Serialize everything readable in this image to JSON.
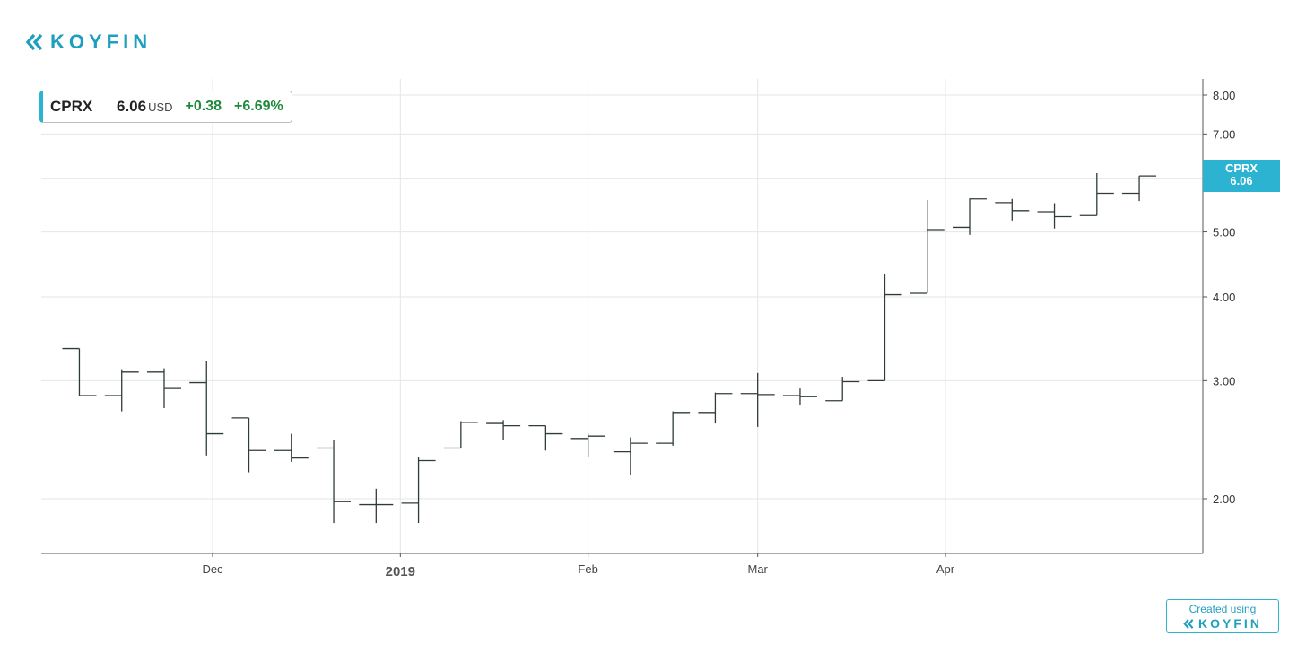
{
  "brand": {
    "name": "KOYFIN",
    "logo_icon": "koyfin-chevron-icon",
    "color": "#1f9fbf"
  },
  "quote": {
    "ticker": "CPRX",
    "price": "6.06",
    "currency": "USD",
    "change": "+0.38",
    "change_pct": "+6.69%",
    "change_color": "#1e8a3c",
    "accent_color": "#2bb3d1"
  },
  "last_price_tag": {
    "ticker": "CPRX",
    "price": "6.06",
    "color": "#2bb3d1"
  },
  "footer": {
    "created_using": "Created using",
    "brand": "KOYFIN"
  },
  "chart_data": {
    "type": "ohlc",
    "title": "",
    "xlabel": "",
    "ylabel": "",
    "y_scale": "log",
    "ylim": [
      1.7,
      8.6
    ],
    "yticks": [
      2,
      3,
      4,
      5,
      6,
      7,
      8
    ],
    "ytick_labels": [
      "2.00",
      "3.00",
      "4.00",
      "5.00",
      "6.00",
      "7.00",
      "8.00"
    ],
    "grid": true,
    "x_start": "2018-11-08",
    "xticks": [
      {
        "date": "2018-12-01",
        "label": "Dec",
        "bold": false
      },
      {
        "date": "2019-01-01",
        "label": "2019",
        "bold": true
      },
      {
        "date": "2019-02-01",
        "label": "Feb",
        "bold": false
      },
      {
        "date": "2019-03-01",
        "label": "Mar",
        "bold": false
      },
      {
        "date": "2019-04-01",
        "label": "Apr",
        "bold": false
      }
    ],
    "bars": [
      {
        "date": "2018-11-09",
        "o": 3.35,
        "h": 3.35,
        "l": 2.85,
        "c": 2.85
      },
      {
        "date": "2018-11-16",
        "o": 2.85,
        "h": 3.12,
        "l": 2.7,
        "c": 3.09
      },
      {
        "date": "2018-11-23",
        "o": 3.09,
        "h": 3.13,
        "l": 2.73,
        "c": 2.92
      },
      {
        "date": "2018-11-30",
        "o": 2.98,
        "h": 3.21,
        "l": 2.32,
        "c": 2.5
      },
      {
        "date": "2018-12-07",
        "o": 2.64,
        "h": 2.64,
        "l": 2.19,
        "c": 2.36
      },
      {
        "date": "2018-12-14",
        "o": 2.36,
        "h": 2.5,
        "l": 2.27,
        "c": 2.3
      },
      {
        "date": "2018-12-21",
        "o": 2.38,
        "h": 2.45,
        "l": 1.84,
        "c": 1.98
      },
      {
        "date": "2018-12-28",
        "o": 1.96,
        "h": 2.07,
        "l": 1.84,
        "c": 1.96
      },
      {
        "date": "2019-01-04",
        "o": 1.97,
        "h": 2.31,
        "l": 1.84,
        "c": 2.28
      },
      {
        "date": "2019-01-11",
        "o": 2.38,
        "h": 2.61,
        "l": 2.38,
        "c": 2.6
      },
      {
        "date": "2019-01-18",
        "o": 2.59,
        "h": 2.62,
        "l": 2.45,
        "c": 2.57
      },
      {
        "date": "2019-01-25",
        "o": 2.57,
        "h": 2.57,
        "l": 2.36,
        "c": 2.5
      },
      {
        "date": "2019-02-01",
        "o": 2.46,
        "h": 2.5,
        "l": 2.31,
        "c": 2.48
      },
      {
        "date": "2019-02-08",
        "o": 2.35,
        "h": 2.47,
        "l": 2.17,
        "c": 2.42
      },
      {
        "date": "2019-02-15",
        "o": 2.42,
        "h": 2.7,
        "l": 2.4,
        "c": 2.69
      },
      {
        "date": "2019-02-22",
        "o": 2.69,
        "h": 2.88,
        "l": 2.59,
        "c": 2.87
      },
      {
        "date": "2019-03-01",
        "o": 2.87,
        "h": 3.08,
        "l": 2.56,
        "c": 2.86
      },
      {
        "date": "2019-03-08",
        "o": 2.85,
        "h": 2.92,
        "l": 2.76,
        "c": 2.84
      },
      {
        "date": "2019-03-15",
        "o": 2.8,
        "h": 3.04,
        "l": 2.8,
        "c": 2.99
      },
      {
        "date": "2019-03-22",
        "o": 3.0,
        "h": 4.32,
        "l": 3.0,
        "c": 4.03
      },
      {
        "date": "2019-03-29",
        "o": 4.05,
        "h": 5.58,
        "l": 4.05,
        "c": 5.04
      },
      {
        "date": "2019-04-05",
        "o": 5.08,
        "h": 5.61,
        "l": 4.95,
        "c": 5.6
      },
      {
        "date": "2019-04-12",
        "o": 5.53,
        "h": 5.6,
        "l": 5.2,
        "c": 5.38
      },
      {
        "date": "2019-04-19",
        "o": 5.36,
        "h": 5.52,
        "l": 5.06,
        "c": 5.27
      },
      {
        "date": "2019-04-26",
        "o": 5.29,
        "h": 6.12,
        "l": 5.29,
        "c": 5.71
      },
      {
        "date": "2019-05-03",
        "o": 5.71,
        "h": 6.06,
        "l": 5.56,
        "c": 6.06
      }
    ],
    "last_price": 6.06
  }
}
